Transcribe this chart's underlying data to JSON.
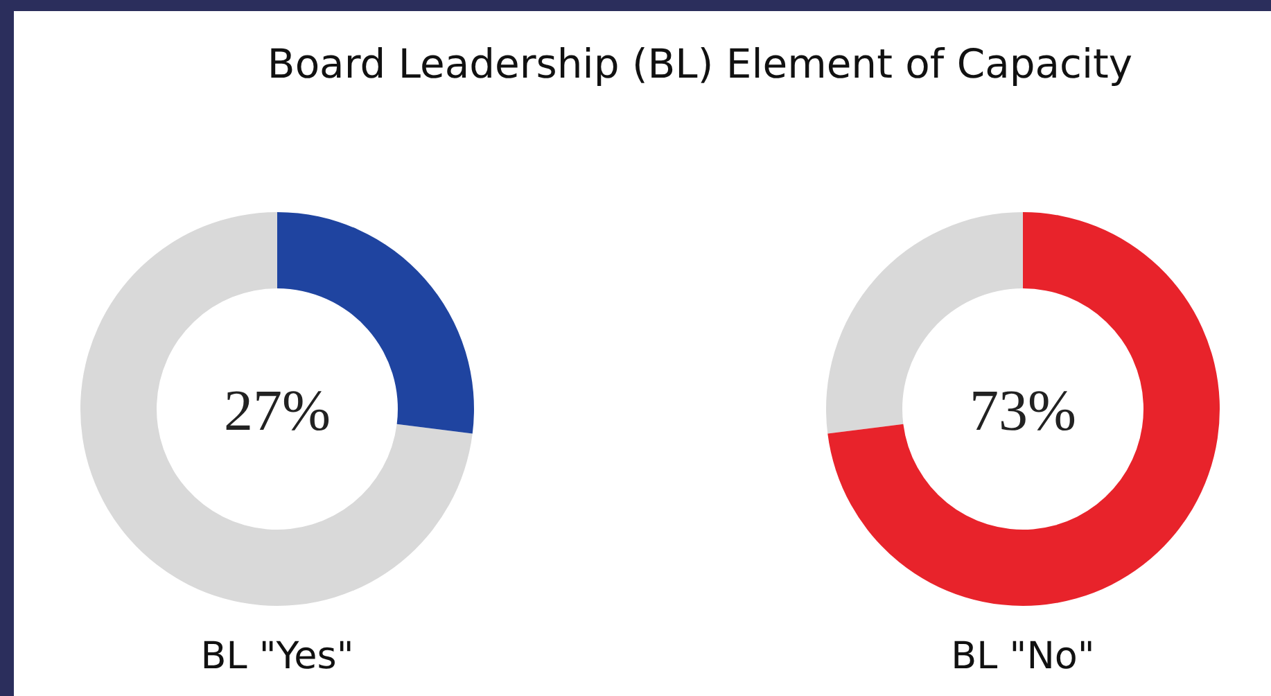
{
  "chart_data": [
    {
      "type": "donut",
      "title": "Board Leadership (BL) Element of Capacity",
      "xlabel": "BL \"Yes\"",
      "categories": [
        null,
        null
      ],
      "values": [
        27,
        73
      ],
      "colors": [
        "#1f44a0",
        "#d9d9d9"
      ],
      "annotations": [
        "27%"
      ]
    },
    {
      "type": "donut",
      "xlabel": "BL \"No\"",
      "categories": [
        null,
        null
      ],
      "values": [
        73,
        27
      ],
      "colors": [
        "#e8232b",
        "#d9d9d9"
      ],
      "annotations": [
        "73%"
      ]
    }
  ]
}
